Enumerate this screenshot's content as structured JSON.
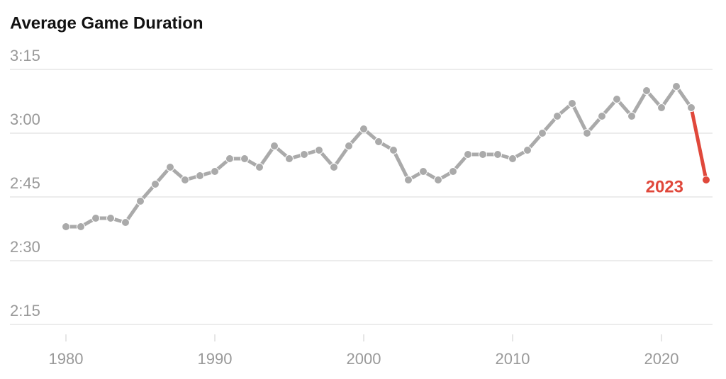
{
  "chart_data": {
    "type": "line",
    "title": "Average Game Duration",
    "x": [
      1980,
      1981,
      1982,
      1983,
      1984,
      1985,
      1986,
      1987,
      1988,
      1989,
      1990,
      1991,
      1992,
      1993,
      1994,
      1995,
      1996,
      1997,
      1998,
      1999,
      2000,
      2001,
      2002,
      2003,
      2004,
      2005,
      2006,
      2007,
      2008,
      2009,
      2010,
      2011,
      2012,
      2013,
      2014,
      2015,
      2016,
      2017,
      2018,
      2019,
      2020,
      2021,
      2022,
      2023
    ],
    "series": [
      {
        "color": "#aaaaaa",
        "highlight_color": "#e0483b",
        "values": [
          158,
          158,
          160,
          160,
          159,
          164,
          168,
          172,
          169,
          170,
          171,
          174,
          174,
          172,
          177,
          174,
          175,
          176,
          172,
          177,
          181,
          178,
          176,
          169,
          171,
          169,
          171,
          175,
          175,
          175,
          174,
          176,
          180,
          184,
          187,
          180,
          184,
          188,
          184,
          190,
          186,
          191,
          186,
          169
        ]
      }
    ],
    "annotation": "2023",
    "xlim": [
      1980,
      2023
    ],
    "xticks": [
      1980,
      1990,
      2000,
      2010,
      2020
    ],
    "ylim": [
      130,
      200
    ],
    "yticks": [
      {
        "value": 195,
        "label": "3:15"
      },
      {
        "value": 180,
        "label": "3:00"
      },
      {
        "value": 165,
        "label": "2:45"
      },
      {
        "value": 150,
        "label": "2:30"
      },
      {
        "value": 135,
        "label": "2:15"
      }
    ],
    "grid": true
  }
}
